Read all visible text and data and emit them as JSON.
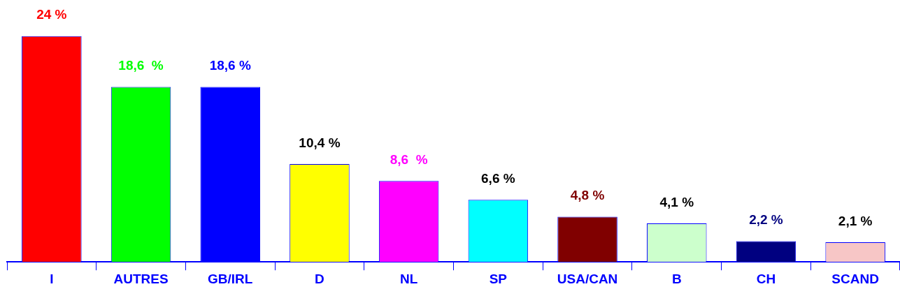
{
  "chart_data": {
    "type": "bar",
    "categories": [
      "I",
      "AUTRES",
      "GB/IRL",
      "D",
      "NL",
      "SP",
      "USA/CAN",
      "B",
      "CH",
      "SCAND"
    ],
    "values": [
      24,
      18.6,
      18.6,
      10.4,
      8.6,
      6.6,
      4.8,
      4.1,
      2.2,
      2.1
    ],
    "colors": [
      "#ff0000",
      "#00ff00",
      "#0000ff",
      "#ffff00",
      "#ff00ff",
      "#00ffff",
      "#800000",
      "#ccffcc",
      "#000080",
      "#f7c6c6"
    ],
    "value_labels": [
      "24 %",
      "18,6  %",
      "18,6 %",
      "10,4 %",
      "8,6  %",
      "6,6 %",
      "4,8 %",
      "4,1 %",
      "2,2 %",
      "2,1 %"
    ],
    "tick_labels": "x",
    "grid": false,
    "legend": false
  }
}
